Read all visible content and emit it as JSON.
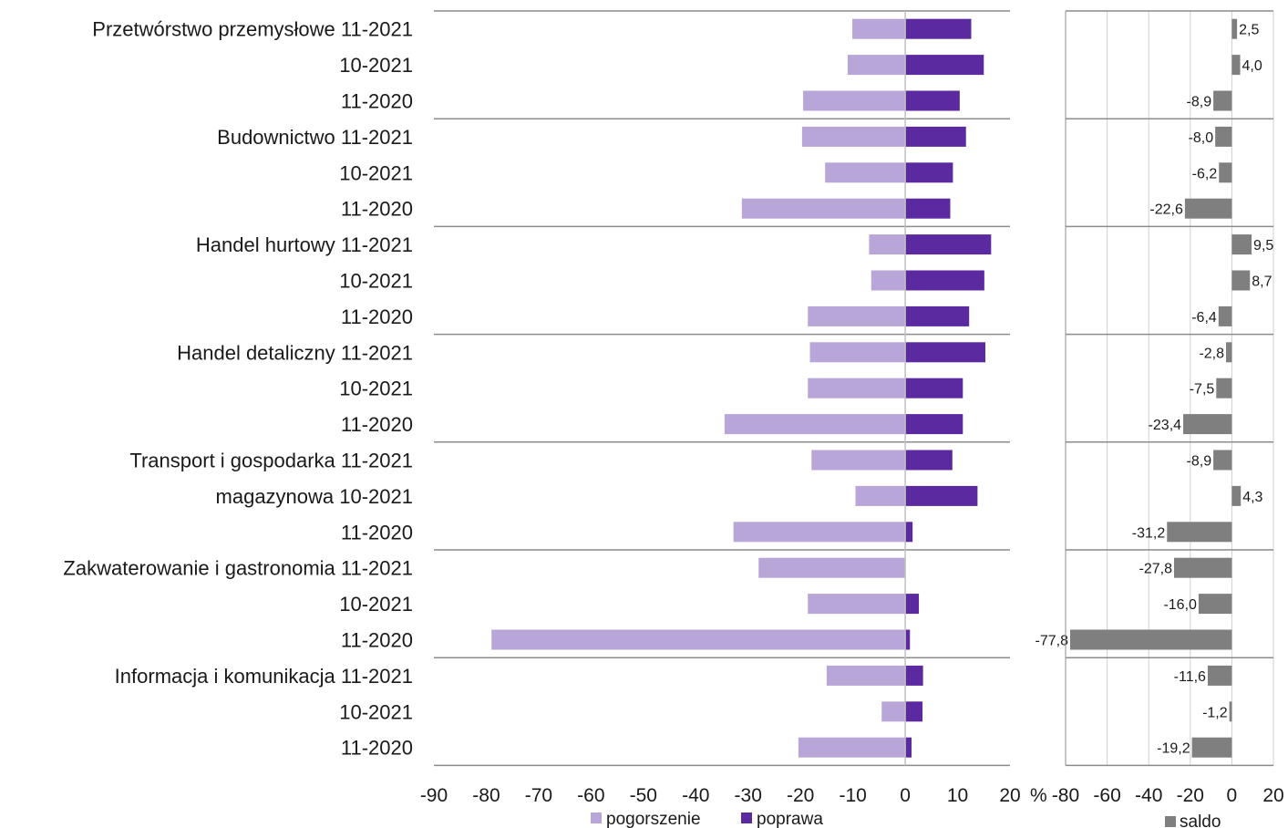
{
  "chart_data": [
    {
      "type": "bar",
      "orientation": "horizontal",
      "stacked": "diverging",
      "categories": [
        "Przetwórstwo przemysłowe 11-2021",
        "10-2021",
        "11-2020",
        "Budownictwo 11-2021",
        "10-2021",
        "11-2020",
        "Handel hurtowy 11-2021",
        "10-2021",
        "11-2020",
        "Handel detaliczny 11-2021",
        "10-2021",
        "11-2020",
        "Transport i gospodarka 11-2021",
        "magazynowa 10-2021",
        "11-2020",
        "Zakwaterowanie i gastronomia 11-2021",
        "10-2021",
        "11-2020",
        "Informacja i komunikacja 11-2021",
        "10-2021",
        "11-2020"
      ],
      "series": [
        {
          "name": "pogorszenie",
          "color": "#b8a6d9",
          "values": [
            -10.1,
            -11.0,
            -19.5,
            -19.7,
            -15.3,
            -31.2,
            -6.9,
            -6.5,
            -18.6,
            -18.2,
            -18.6,
            -34.5,
            -17.9,
            -9.5,
            -32.8,
            -28.0,
            -18.6,
            -79.0,
            -15.0,
            -4.5,
            -20.4
          ]
        },
        {
          "name": "poprawa",
          "color": "#5b2aa0",
          "values": [
            12.6,
            15.0,
            10.4,
            11.6,
            9.1,
            8.6,
            16.4,
            15.1,
            12.2,
            15.3,
            11.0,
            11.0,
            9.0,
            13.8,
            1.4,
            0.0,
            2.6,
            0.9,
            3.4,
            3.3,
            1.2
          ]
        }
      ],
      "xlim": [
        -90,
        20
      ],
      "xticks": [
        "-90",
        "-80",
        "-70",
        "-60",
        "-50",
        "-40",
        "-30",
        "-20",
        "-10",
        "0",
        "10",
        "20"
      ],
      "xunit": "%",
      "legend_position": "bottom",
      "grid": false
    },
    {
      "type": "bar",
      "orientation": "horizontal",
      "series": [
        {
          "name": "saldo",
          "color": "#7f7f7f",
          "values": [
            2.5,
            4.0,
            -8.9,
            -8.0,
            -6.2,
            -22.6,
            9.5,
            8.7,
            -6.4,
            -2.8,
            -7.5,
            -23.4,
            -8.9,
            4.3,
            -31.2,
            -27.8,
            -16.0,
            -77.8,
            -11.6,
            -1.2,
            -19.2
          ],
          "data_labels": [
            "2,5",
            "4,0",
            "-8,9",
            "-8,0",
            "-6,2",
            "-22,6",
            "9,5",
            "8,7",
            "-6,4",
            "-2,8",
            "-7,5",
            "-23,4",
            "-8,9",
            "4,3",
            "-31,2",
            "-27,8",
            "-16,0",
            "-77,8",
            "-11,6",
            "-1,2",
            "-19,2"
          ]
        }
      ],
      "xlim": [
        -80,
        20
      ],
      "xticks": [
        "-80",
        "-60",
        "-40",
        "-20",
        "0",
        "20"
      ],
      "legend_position": "bottom",
      "grid": true
    }
  ]
}
